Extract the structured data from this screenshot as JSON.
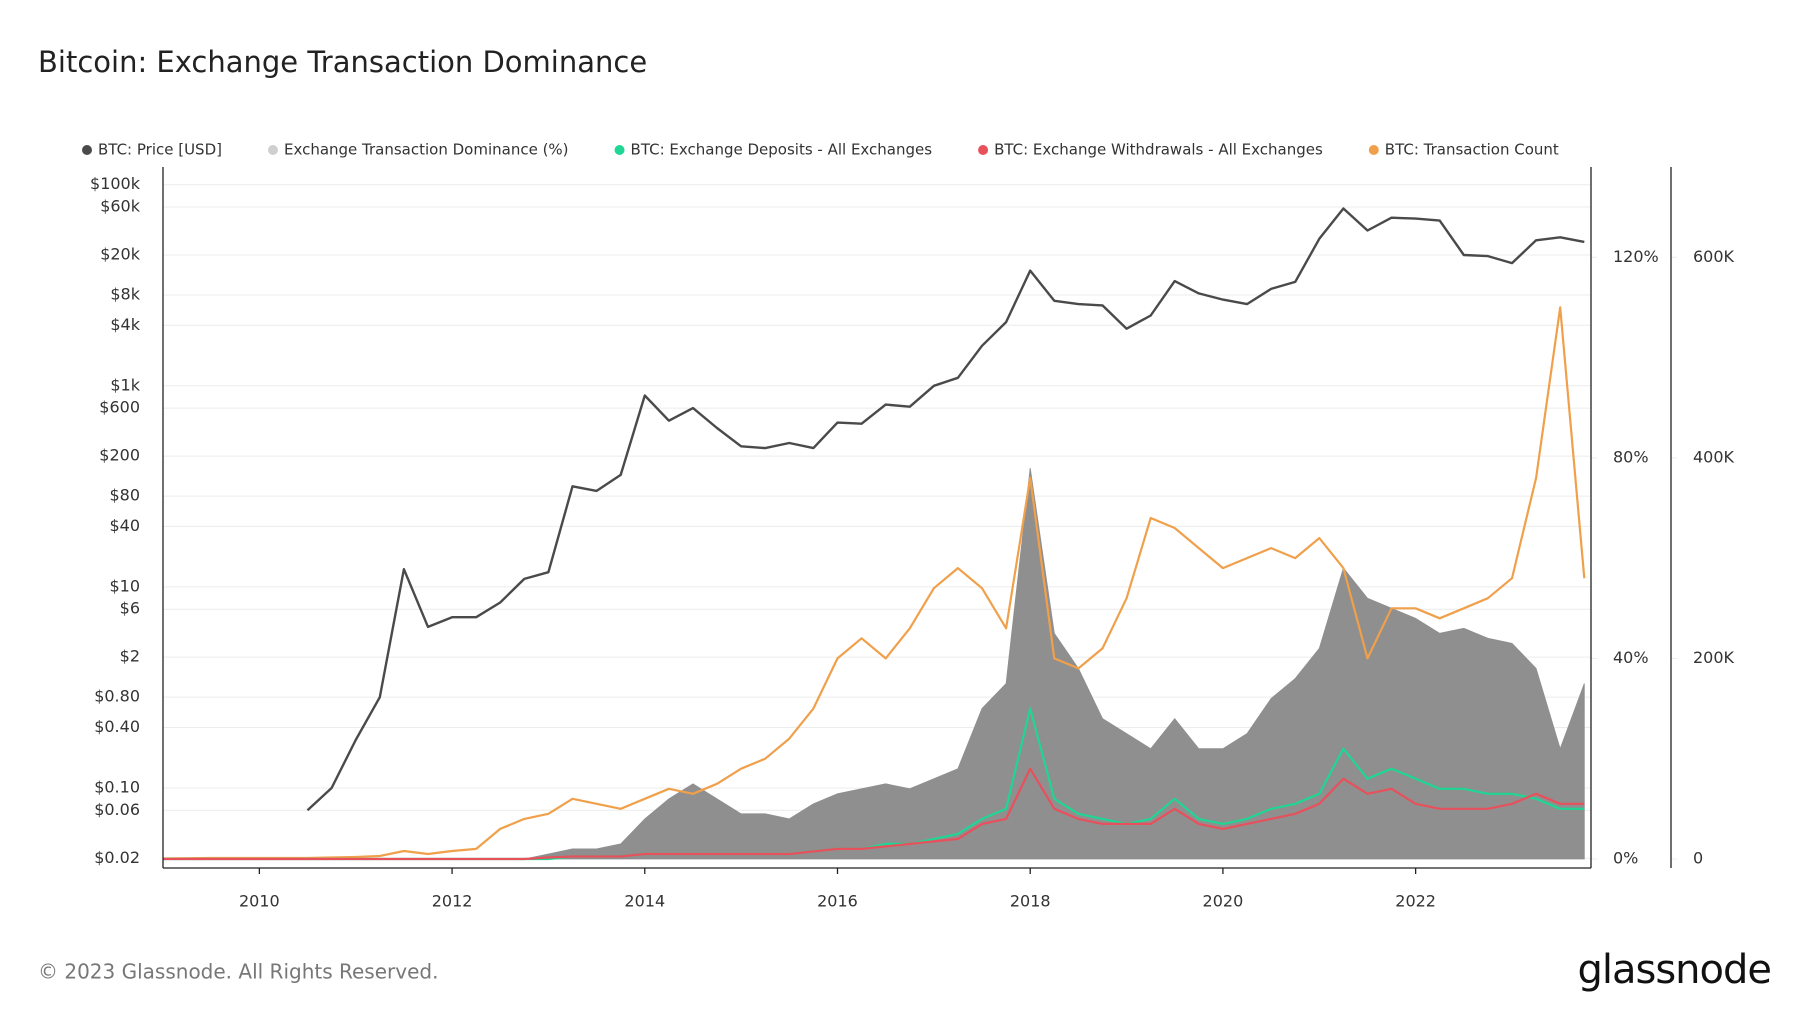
{
  "chart_data": {
    "type": "multi-axis",
    "title": "Bitcoin: Exchange Transaction Dominance",
    "x": [
      2009,
      2009.25,
      2009.5,
      2009.75,
      2010,
      2010.25,
      2010.5,
      2010.75,
      2011,
      2011.25,
      2011.5,
      2011.75,
      2012,
      2012.25,
      2012.5,
      2012.75,
      2013,
      2013.25,
      2013.5,
      2013.75,
      2014,
      2014.25,
      2014.5,
      2014.75,
      2015,
      2015.25,
      2015.5,
      2015.75,
      2016,
      2016.25,
      2016.5,
      2016.75,
      2017,
      2017.25,
      2017.5,
      2017.75,
      2018,
      2018.25,
      2018.5,
      2018.75,
      2019,
      2019.25,
      2019.5,
      2019.75,
      2020,
      2020.25,
      2020.5,
      2020.75,
      2021,
      2021.25,
      2021.5,
      2021.75,
      2022,
      2022.25,
      2022.5,
      2022.75,
      2023,
      2023.25,
      2023.5,
      2023.75
    ],
    "xlim": [
      2009.0,
      2023.82
    ],
    "xticks": [
      2010,
      2012,
      2014,
      2016,
      2018,
      2020,
      2022
    ],
    "ylog": true,
    "ylim": [
      0.016,
      150000
    ],
    "yticks": [
      {
        "value": 100000,
        "label": "$100k"
      },
      {
        "value": 60000,
        "label": "$60k"
      },
      {
        "value": 20000,
        "label": "$20k"
      },
      {
        "value": 8000,
        "label": "$8k"
      },
      {
        "value": 4000,
        "label": "$4k"
      },
      {
        "value": 1000,
        "label": "$1k"
      },
      {
        "value": 600,
        "label": "$600"
      },
      {
        "value": 200,
        "label": "$200"
      },
      {
        "value": 80,
        "label": "$80"
      },
      {
        "value": 40,
        "label": "$40"
      },
      {
        "value": 10,
        "label": "$10"
      },
      {
        "value": 6,
        "label": "$6"
      },
      {
        "value": 2,
        "label": "$2"
      },
      {
        "value": 0.8,
        "label": "$0.80"
      },
      {
        "value": 0.4,
        "label": "$0.40"
      },
      {
        "value": 0.1,
        "label": "$0.10"
      },
      {
        "value": 0.06,
        "label": "$0.06"
      },
      {
        "value": 0.02,
        "label": "$0.02"
      }
    ],
    "y2lim": [
      -1.8,
      138
    ],
    "y2ticks": [
      {
        "value": 0,
        "label": "0%"
      },
      {
        "value": 40,
        "label": "40%"
      },
      {
        "value": 80,
        "label": "80%"
      },
      {
        "value": 120,
        "label": "120%"
      }
    ],
    "y3lim": [
      -9000,
      690000
    ],
    "y3ticks": [
      0,
      {
        "value": 200000,
        "label": "200K"
      },
      {
        "value": 400000,
        "label": "400K"
      },
      {
        "value": 600000,
        "label": "600K"
      }
    ],
    "grid": true,
    "series": [
      {
        "name": "BTC: Price [USD]",
        "color": "#4a4a4a",
        "axis": "y",
        "style": "line",
        "values": [
          null,
          null,
          null,
          null,
          null,
          null,
          0.06,
          0.1,
          0.3,
          0.8,
          15,
          4,
          5,
          5,
          7,
          12,
          14,
          100,
          90,
          130,
          800,
          450,
          600,
          380,
          250,
          240,
          270,
          240,
          430,
          420,
          650,
          620,
          1000,
          1200,
          2500,
          4300,
          14000,
          7000,
          6500,
          6300,
          3700,
          5000,
          11000,
          8300,
          7200,
          6500,
          9200,
          10800,
          29000,
          58000,
          35000,
          47000,
          46000,
          44000,
          20000,
          19500,
          16600,
          28000,
          30000,
          27000
        ]
      },
      {
        "name": "Exchange Transaction Dominance (%)",
        "color": "#8f8f8f",
        "axis": "y2",
        "style": "area",
        "values": [
          0,
          0,
          0,
          0,
          0,
          0,
          0,
          0,
          0,
          0,
          0,
          0,
          0,
          0,
          0,
          0,
          1,
          2,
          2,
          3,
          8,
          12,
          15,
          12,
          9,
          9,
          8,
          11,
          13,
          14,
          15,
          14,
          16,
          18,
          30,
          35,
          78,
          45,
          38,
          28,
          25,
          22,
          28,
          22,
          22,
          25,
          32,
          36,
          42,
          58,
          52,
          50,
          48,
          45,
          46,
          44,
          43,
          38,
          22,
          35
        ]
      },
      {
        "name": "BTC: Exchange Deposits - All Exchanges",
        "color": "#1fd694",
        "axis": "y2",
        "style": "line",
        "values": [
          0,
          0,
          0,
          0,
          0,
          0,
          0,
          0,
          0,
          0,
          0,
          0,
          0,
          0,
          0,
          0,
          0,
          0.5,
          0.5,
          0.5,
          1,
          1,
          1,
          1,
          1,
          1,
          1,
          1.5,
          2,
          2,
          3,
          3,
          4,
          5,
          8,
          10,
          30,
          12,
          9,
          8,
          7,
          8,
          12,
          8,
          7,
          8,
          10,
          11,
          13,
          22,
          16,
          18,
          16,
          14,
          14,
          13,
          13,
          12,
          10,
          10
        ]
      },
      {
        "name": "BTC: Exchange Withdrawals - All Exchanges",
        "color": "#e8505b",
        "axis": "y2",
        "style": "line",
        "values": [
          0,
          0,
          0,
          0,
          0,
          0,
          0,
          0,
          0,
          0,
          0,
          0,
          0,
          0,
          0,
          0,
          0.3,
          0.5,
          0.5,
          0.5,
          1,
          1,
          1,
          1,
          1,
          1,
          1,
          1.5,
          2,
          2,
          2.5,
          3,
          3.5,
          4,
          7,
          8,
          18,
          10,
          8,
          7,
          7,
          7,
          10,
          7,
          6,
          7,
          8,
          9,
          11,
          16,
          13,
          14,
          11,
          10,
          10,
          10,
          11,
          13,
          11,
          11
        ]
      },
      {
        "name": "BTC: Transaction Count",
        "color": "#f0a04b",
        "axis": "y3",
        "style": "line",
        "values": [
          500,
          800,
          1000,
          1000,
          1000,
          1000,
          1000,
          1500,
          2000,
          3000,
          8000,
          5000,
          8000,
          10000,
          30000,
          40000,
          45000,
          60000,
          55000,
          50000,
          60000,
          70000,
          65000,
          75000,
          90000,
          100000,
          120000,
          150000,
          200000,
          220000,
          200000,
          230000,
          270000,
          290000,
          270000,
          230000,
          380000,
          200000,
          190000,
          210000,
          260000,
          340000,
          330000,
          310000,
          290000,
          300000,
          310000,
          300000,
          320000,
          290000,
          200000,
          250000,
          250000,
          240000,
          250000,
          260000,
          280000,
          380000,
          550000,
          280000
        ]
      }
    ]
  },
  "footer": {
    "copyright": "© 2023 Glassnode. All Rights Reserved.",
    "logo": "glassnode"
  }
}
